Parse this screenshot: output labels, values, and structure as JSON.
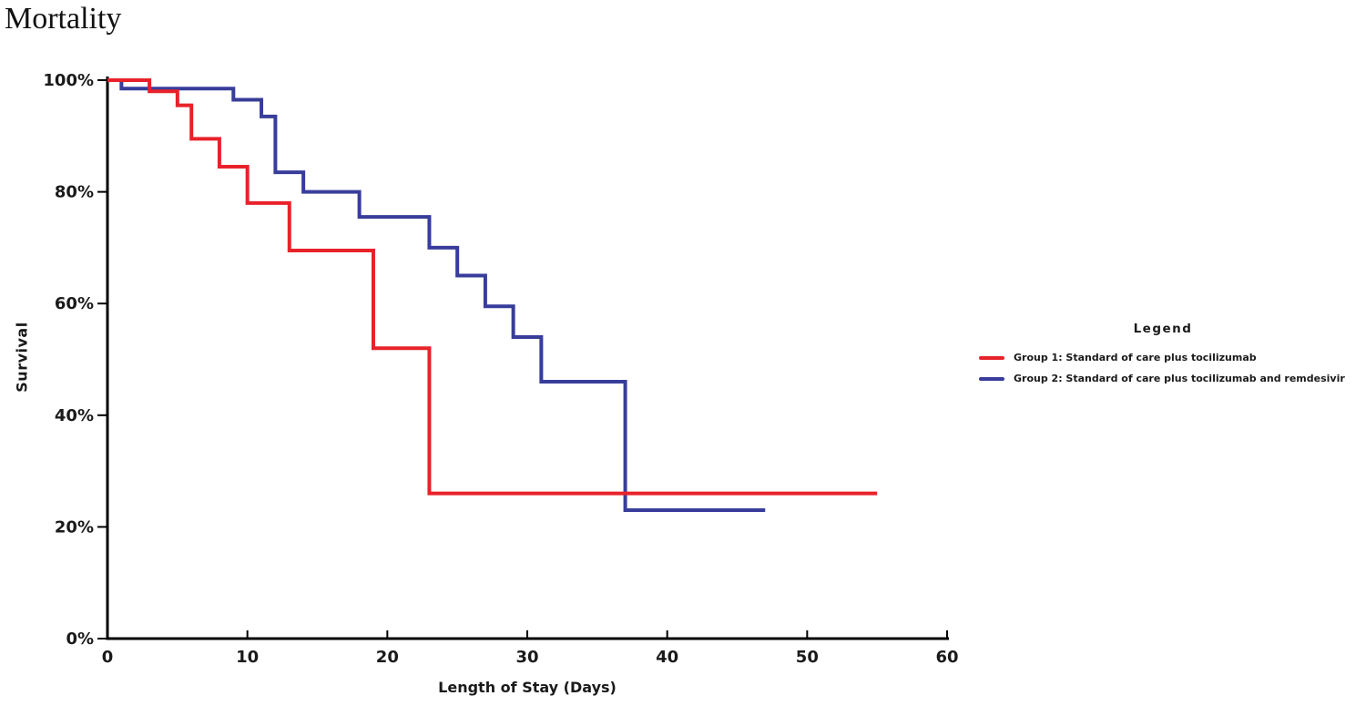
{
  "title": "Mortality",
  "chart_data": {
    "type": "line",
    "subtype": "kaplan-meier-step",
    "title": "Mortality",
    "xlabel": "Length of Stay (Days)",
    "ylabel": "Survival",
    "xlim": [
      0,
      60
    ],
    "ylim": [
      0,
      100
    ],
    "grid": false,
    "x_ticks": [
      {
        "value": 0,
        "label": "0"
      },
      {
        "value": 10,
        "label": "10"
      },
      {
        "value": 20,
        "label": "20"
      },
      {
        "value": 30,
        "label": "30"
      },
      {
        "value": 40,
        "label": "40"
      },
      {
        "value": 50,
        "label": "50"
      },
      {
        "value": 60,
        "label": "60"
      }
    ],
    "y_ticks": [
      {
        "value": 0,
        "label": "0%"
      },
      {
        "value": 20,
        "label": "20%"
      },
      {
        "value": 40,
        "label": "40%"
      },
      {
        "value": 60,
        "label": "60%"
      },
      {
        "value": 80,
        "label": "80%"
      },
      {
        "value": 100,
        "label": "100%"
      }
    ],
    "legend": {
      "title": "Legend",
      "position": "right",
      "entries": [
        {
          "label": "Group 1: Standard of care plus tocilizumab",
          "color": "#e8222a"
        },
        {
          "label": "Group 2: Standard of care plus tocilizumab and remdesivir",
          "color": "#383d9b"
        }
      ]
    },
    "series": [
      {
        "name": "Group 1: Standard of care plus tocilizumab",
        "color": "#e8222a",
        "points": [
          [
            0,
            100
          ],
          [
            3,
            98
          ],
          [
            5,
            95.5
          ],
          [
            6,
            89.5
          ],
          [
            8,
            84.5
          ],
          [
            10,
            78
          ],
          [
            13,
            69.5
          ],
          [
            19,
            52
          ],
          [
            23,
            26
          ]
        ],
        "end_x": 55
      },
      {
        "name": "Group 2: Standard of care plus tocilizumab and remdesivir",
        "color": "#383d9b",
        "points": [
          [
            0,
            100
          ],
          [
            1,
            98.5
          ],
          [
            9,
            96.5
          ],
          [
            11,
            93.5
          ],
          [
            12,
            83.5
          ],
          [
            14,
            80
          ],
          [
            18,
            75.5
          ],
          [
            23,
            70
          ],
          [
            25,
            65
          ],
          [
            27,
            59.5
          ],
          [
            29,
            54
          ],
          [
            31,
            46
          ],
          [
            37,
            23
          ]
        ],
        "end_x": 47
      }
    ],
    "axis_color": "#000000"
  }
}
